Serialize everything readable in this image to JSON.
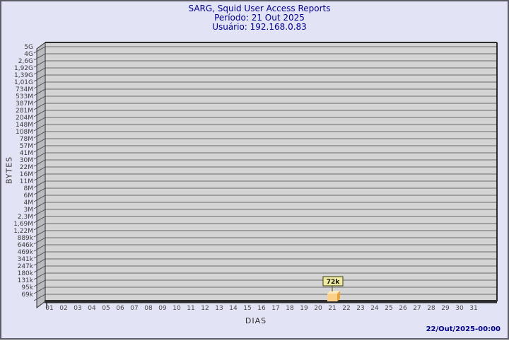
{
  "window": {
    "background": "#e3e3f6",
    "border_color": "#5c5c66"
  },
  "header": {
    "title": "SARG, Squid User Access Reports",
    "period": "Período: 21 Out 2025",
    "user": "Usuário: 192.168.0.83",
    "text_color": "#00008b"
  },
  "chart_data": {
    "type": "bar",
    "title": "SARG, Squid User Access Reports",
    "subtitle": [
      "Período: 21 Out 2025",
      "Usuário: 192.168.0.83"
    ],
    "xlabel": "DIAS",
    "ylabel": "BYTES",
    "y_scale": "log",
    "grid": true,
    "categories": [
      "01",
      "02",
      "03",
      "04",
      "05",
      "06",
      "07",
      "08",
      "09",
      "10",
      "11",
      "12",
      "13",
      "14",
      "15",
      "16",
      "17",
      "18",
      "19",
      "20",
      "21",
      "22",
      "23",
      "24",
      "25",
      "26",
      "27",
      "28",
      "29",
      "30",
      "31"
    ],
    "y_tick_labels": [
      "5G",
      "4G",
      "2,6G",
      "1,92G",
      "1,39G",
      "1,01G",
      "734M",
      "533M",
      "387M",
      "281M",
      "204M",
      "148M",
      "108M",
      "78M",
      "57M",
      "41M",
      "30M",
      "22M",
      "16M",
      "11M",
      "8M",
      "6M",
      "4M",
      "3M",
      "2,3M",
      "1,69M",
      "1,22M",
      "889k",
      "646k",
      "469k",
      "341k",
      "247k",
      "180k",
      "131k",
      "95k",
      "69k"
    ],
    "values": [
      {
        "category": "21",
        "value": 72000,
        "label": "72k"
      }
    ],
    "colors": {
      "plot_band": "#d4d4d4",
      "grid_line": "#6a6a6a",
      "wall": "#b9bcbf",
      "frame": "#2d2d2d",
      "tick_text": "#3a3a3a",
      "bar_front": "#fbd18a",
      "bar_side": "#eea33a",
      "bar_top": "#faeac0",
      "annotation_bg": "#efe9a6",
      "annotation_border": "#3f3f0c",
      "annotation_text": "#151500",
      "stem": "#55551a"
    }
  },
  "footer": {
    "timestamp": "22/Out/2025-00:00",
    "text_color": "#00008b"
  }
}
